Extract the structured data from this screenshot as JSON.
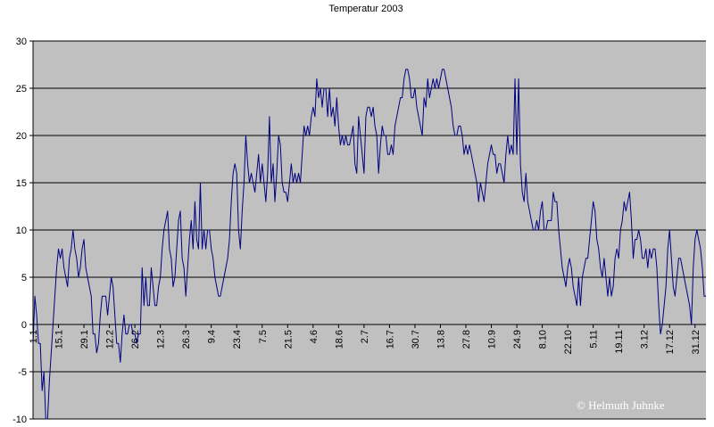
{
  "chart_data": {
    "type": "line",
    "title": "Temperatur 2003",
    "xlabel": "",
    "ylabel": "",
    "ylim": [
      -10,
      30
    ],
    "ytick_labels": [
      "30",
      "25",
      "20",
      "15",
      "10",
      "5",
      "0",
      "-5",
      "-10"
    ],
    "ytick_values": [
      30,
      25,
      20,
      15,
      10,
      5,
      0,
      -5,
      -10
    ],
    "xtick_labels": [
      "1.1",
      "15.1",
      "29.1",
      "12.2",
      "26.2",
      "12.3",
      "26.3",
      "9.4",
      "23.4",
      "7.5",
      "21.5",
      "4.6",
      "18.6",
      "2.7",
      "16.7",
      "30.7",
      "13.8",
      "27.8",
      "10.9",
      "24.9",
      "8.10",
      "22.10",
      "5.11",
      "19.11",
      "3.12",
      "17.12",
      "31.12"
    ],
    "xtick_days": [
      0,
      14,
      28,
      42,
      56,
      70,
      84,
      98,
      112,
      126,
      140,
      154,
      168,
      182,
      196,
      210,
      224,
      238,
      252,
      266,
      280,
      294,
      308,
      322,
      336,
      350,
      364
    ],
    "grid": true,
    "background": "#c0c0c0",
    "line_color": "#000080",
    "series": [
      {
        "values": [
          -2,
          3,
          1,
          -2,
          -2,
          -7,
          -5,
          -10,
          -10,
          -6,
          -3,
          0,
          3,
          6,
          8,
          7,
          8,
          6,
          5,
          4,
          7,
          8,
          10,
          8,
          7,
          5,
          6,
          8,
          9,
          6,
          5,
          4,
          3,
          -1,
          -1,
          -3,
          -2,
          1,
          3,
          3,
          3,
          1,
          3,
          5,
          4,
          1,
          -2,
          -2,
          -4,
          -1,
          1,
          -1,
          -1,
          0,
          0,
          -1,
          -1,
          -2,
          -1,
          -1,
          6,
          2,
          5,
          2,
          2,
          6,
          4,
          2,
          2,
          4,
          5,
          8,
          10,
          11,
          12,
          8,
          7,
          4,
          5,
          8,
          11,
          12,
          7,
          6,
          3,
          6,
          9,
          11,
          8,
          13,
          9,
          8,
          15,
          8,
          10,
          8,
          10,
          10,
          8,
          7,
          5,
          4,
          3,
          3,
          4,
          5,
          6,
          7,
          9,
          13,
          16,
          17,
          16,
          10,
          8,
          12,
          15,
          20,
          17,
          15,
          16,
          15,
          14,
          16,
          18,
          15,
          17,
          15,
          13,
          16,
          22,
          15,
          17,
          13,
          16,
          20,
          19,
          15,
          14,
          14,
          13,
          15,
          17,
          15,
          16,
          15,
          16,
          15,
          18,
          21,
          20,
          21,
          20,
          22,
          23,
          22,
          26,
          24,
          25,
          23,
          25,
          25,
          22,
          25,
          22,
          23,
          21,
          24,
          21,
          19,
          20,
          19,
          20,
          19,
          19,
          20,
          21,
          17,
          16,
          22,
          20,
          18,
          16,
          22,
          23,
          23,
          22,
          23,
          21,
          20,
          16,
          19,
          21,
          20,
          20,
          18,
          18,
          19,
          18,
          21,
          22,
          23,
          24,
          24,
          26,
          27,
          27,
          26,
          24,
          24,
          25,
          23,
          22,
          21,
          20,
          24,
          23,
          26,
          24,
          25,
          26,
          25,
          26,
          25,
          26,
          27,
          27,
          26,
          25,
          24,
          23,
          21,
          20,
          20,
          21,
          21,
          20,
          18,
          19,
          18,
          19,
          18,
          17,
          16,
          15,
          13,
          15,
          14,
          13,
          15,
          17,
          18,
          19,
          18,
          18,
          16,
          17,
          17,
          16,
          15,
          18,
          20,
          18,
          19,
          18,
          26,
          18,
          26,
          17,
          14,
          13,
          16,
          13,
          12,
          11,
          10,
          10,
          11,
          10,
          12,
          13,
          10,
          10,
          11,
          11,
          11,
          14,
          13,
          13,
          10,
          8,
          6,
          5,
          4,
          6,
          7,
          6,
          4,
          3,
          2,
          5,
          2,
          5,
          6,
          7,
          7,
          9,
          11,
          13,
          12,
          9,
          8,
          6,
          5,
          7,
          5,
          3,
          5,
          3,
          4,
          7,
          8,
          7,
          10,
          11,
          13,
          12,
          13,
          14,
          11,
          7,
          9,
          9,
          10,
          9,
          7,
          7,
          8,
          6,
          8,
          7,
          8,
          8,
          6,
          2,
          -1,
          0,
          2,
          4,
          8,
          10,
          7,
          4,
          3,
          5,
          7,
          7,
          6,
          5,
          4,
          3,
          2,
          0,
          6,
          9,
          10,
          9,
          8,
          6,
          3,
          3
        ]
      }
    ]
  },
  "watermark": {
    "text": "© Helmuth Juhnke"
  }
}
